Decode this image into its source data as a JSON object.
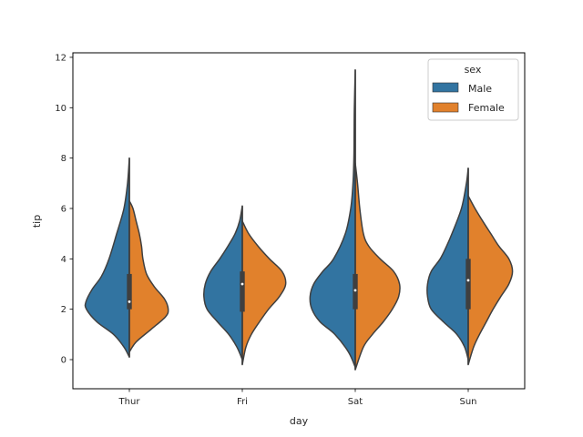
{
  "chart_data": {
    "type": "violin",
    "split": true,
    "title": "",
    "xlabel": "day",
    "ylabel": "tip",
    "categories": [
      "Thur",
      "Fri",
      "Sat",
      "Sun"
    ],
    "ylim": [
      -1.2,
      12.2
    ],
    "yticks": [
      0,
      2,
      4,
      6,
      8,
      10,
      12
    ],
    "grid": false,
    "legend": {
      "title": "sex",
      "placement": "top-right",
      "entries": [
        {
          "label": "Male",
          "color": "#3274a1"
        },
        {
          "label": "Female",
          "color": "#e1812c"
        }
      ]
    },
    "inner_box": {
      "Thur": {
        "q1": 2.0,
        "median": 2.3,
        "q3": 3.4,
        "whisker_low": 1.2,
        "whisker_high": 5.0
      },
      "Fri": {
        "q1": 1.9,
        "median": 3.0,
        "q3": 3.5,
        "whisker_low": 1.0,
        "whisker_high": 4.7
      },
      "Sat": {
        "q1": 2.0,
        "median": 2.75,
        "q3": 3.4,
        "whisker_low": 1.0,
        "whisker_high": 5.0
      },
      "Sun": {
        "q1": 2.0,
        "median": 3.15,
        "q3": 4.0,
        "whisker_low": 1.0,
        "whisker_high": 6.5
      }
    },
    "series": [
      {
        "name": "Male",
        "color": "#3274a1",
        "profiles": {
          "Thur": [
            [
              0.1,
              0
            ],
            [
              0.5,
              0.12
            ],
            [
              1.0,
              0.35
            ],
            [
              1.5,
              0.72
            ],
            [
              2.0,
              0.95
            ],
            [
              2.3,
              0.96
            ],
            [
              2.8,
              0.82
            ],
            [
              3.3,
              0.62
            ],
            [
              4.0,
              0.45
            ],
            [
              5.0,
              0.28
            ],
            [
              6.0,
              0.12
            ],
            [
              7.0,
              0.04
            ],
            [
              8.0,
              0
            ]
          ],
          "Fri": [
            [
              0.0,
              0
            ],
            [
              0.5,
              0.12
            ],
            [
              1.0,
              0.3
            ],
            [
              1.5,
              0.55
            ],
            [
              2.0,
              0.78
            ],
            [
              2.5,
              0.85
            ],
            [
              3.0,
              0.82
            ],
            [
              3.5,
              0.7
            ],
            [
              4.0,
              0.5
            ],
            [
              4.5,
              0.32
            ],
            [
              5.0,
              0.16
            ],
            [
              5.5,
              0.06
            ],
            [
              6.1,
              0
            ]
          ],
          "Sat": [
            [
              -0.3,
              0
            ],
            [
              0.3,
              0.15
            ],
            [
              1.0,
              0.45
            ],
            [
              1.5,
              0.78
            ],
            [
              2.0,
              0.96
            ],
            [
              2.5,
              1.0
            ],
            [
              3.0,
              0.92
            ],
            [
              3.5,
              0.72
            ],
            [
              4.0,
              0.48
            ],
            [
              5.0,
              0.22
            ],
            [
              6.0,
              0.1
            ],
            [
              7.0,
              0.05
            ],
            [
              8.0,
              0.03
            ],
            [
              9.0,
              0.025
            ],
            [
              10.0,
              0.02
            ],
            [
              11.5,
              0
            ]
          ],
          "Sun": [
            [
              0.0,
              0
            ],
            [
              0.5,
              0.08
            ],
            [
              1.0,
              0.25
            ],
            [
              1.5,
              0.55
            ],
            [
              2.0,
              0.82
            ],
            [
              2.5,
              0.9
            ],
            [
              3.0,
              0.9
            ],
            [
              3.5,
              0.82
            ],
            [
              4.0,
              0.62
            ],
            [
              4.5,
              0.48
            ],
            [
              5.0,
              0.36
            ],
            [
              6.0,
              0.15
            ],
            [
              7.0,
              0.04
            ],
            [
              7.6,
              0
            ]
          ]
        }
      },
      {
        "name": "Female",
        "color": "#e1812c",
        "profiles": {
          "Thur": [
            [
              0.3,
              0
            ],
            [
              0.7,
              0.15
            ],
            [
              1.2,
              0.48
            ],
            [
              1.7,
              0.8
            ],
            [
              2.0,
              0.86
            ],
            [
              2.4,
              0.78
            ],
            [
              2.9,
              0.55
            ],
            [
              3.4,
              0.38
            ],
            [
              4.0,
              0.3
            ],
            [
              4.5,
              0.27
            ],
            [
              5.0,
              0.22
            ],
            [
              5.5,
              0.15
            ],
            [
              6.0,
              0.08
            ],
            [
              6.3,
              0
            ]
          ],
          "Fri": [
            [
              -0.2,
              0
            ],
            [
              0.5,
              0.08
            ],
            [
              1.0,
              0.2
            ],
            [
              1.5,
              0.38
            ],
            [
              2.0,
              0.58
            ],
            [
              2.5,
              0.82
            ],
            [
              3.0,
              0.96
            ],
            [
              3.5,
              0.88
            ],
            [
              4.0,
              0.6
            ],
            [
              4.5,
              0.35
            ],
            [
              5.0,
              0.14
            ],
            [
              5.5,
              0
            ]
          ],
          "Sat": [
            [
              -0.4,
              0
            ],
            [
              0.5,
              0.18
            ],
            [
              1.0,
              0.38
            ],
            [
              1.5,
              0.62
            ],
            [
              2.0,
              0.82
            ],
            [
              2.5,
              0.96
            ],
            [
              3.0,
              0.98
            ],
            [
              3.5,
              0.85
            ],
            [
              4.0,
              0.55
            ],
            [
              4.5,
              0.3
            ],
            [
              5.0,
              0.18
            ],
            [
              6.0,
              0.1
            ],
            [
              7.0,
              0.05
            ],
            [
              7.8,
              0
            ]
          ],
          "Sun": [
            [
              -0.2,
              0
            ],
            [
              0.5,
              0.12
            ],
            [
              1.0,
              0.25
            ],
            [
              1.5,
              0.4
            ],
            [
              2.0,
              0.55
            ],
            [
              2.5,
              0.72
            ],
            [
              3.0,
              0.9
            ],
            [
              3.5,
              0.98
            ],
            [
              4.0,
              0.9
            ],
            [
              4.5,
              0.68
            ],
            [
              5.0,
              0.5
            ],
            [
              5.5,
              0.32
            ],
            [
              6.0,
              0.15
            ],
            [
              6.5,
              0
            ]
          ]
        }
      }
    ]
  }
}
